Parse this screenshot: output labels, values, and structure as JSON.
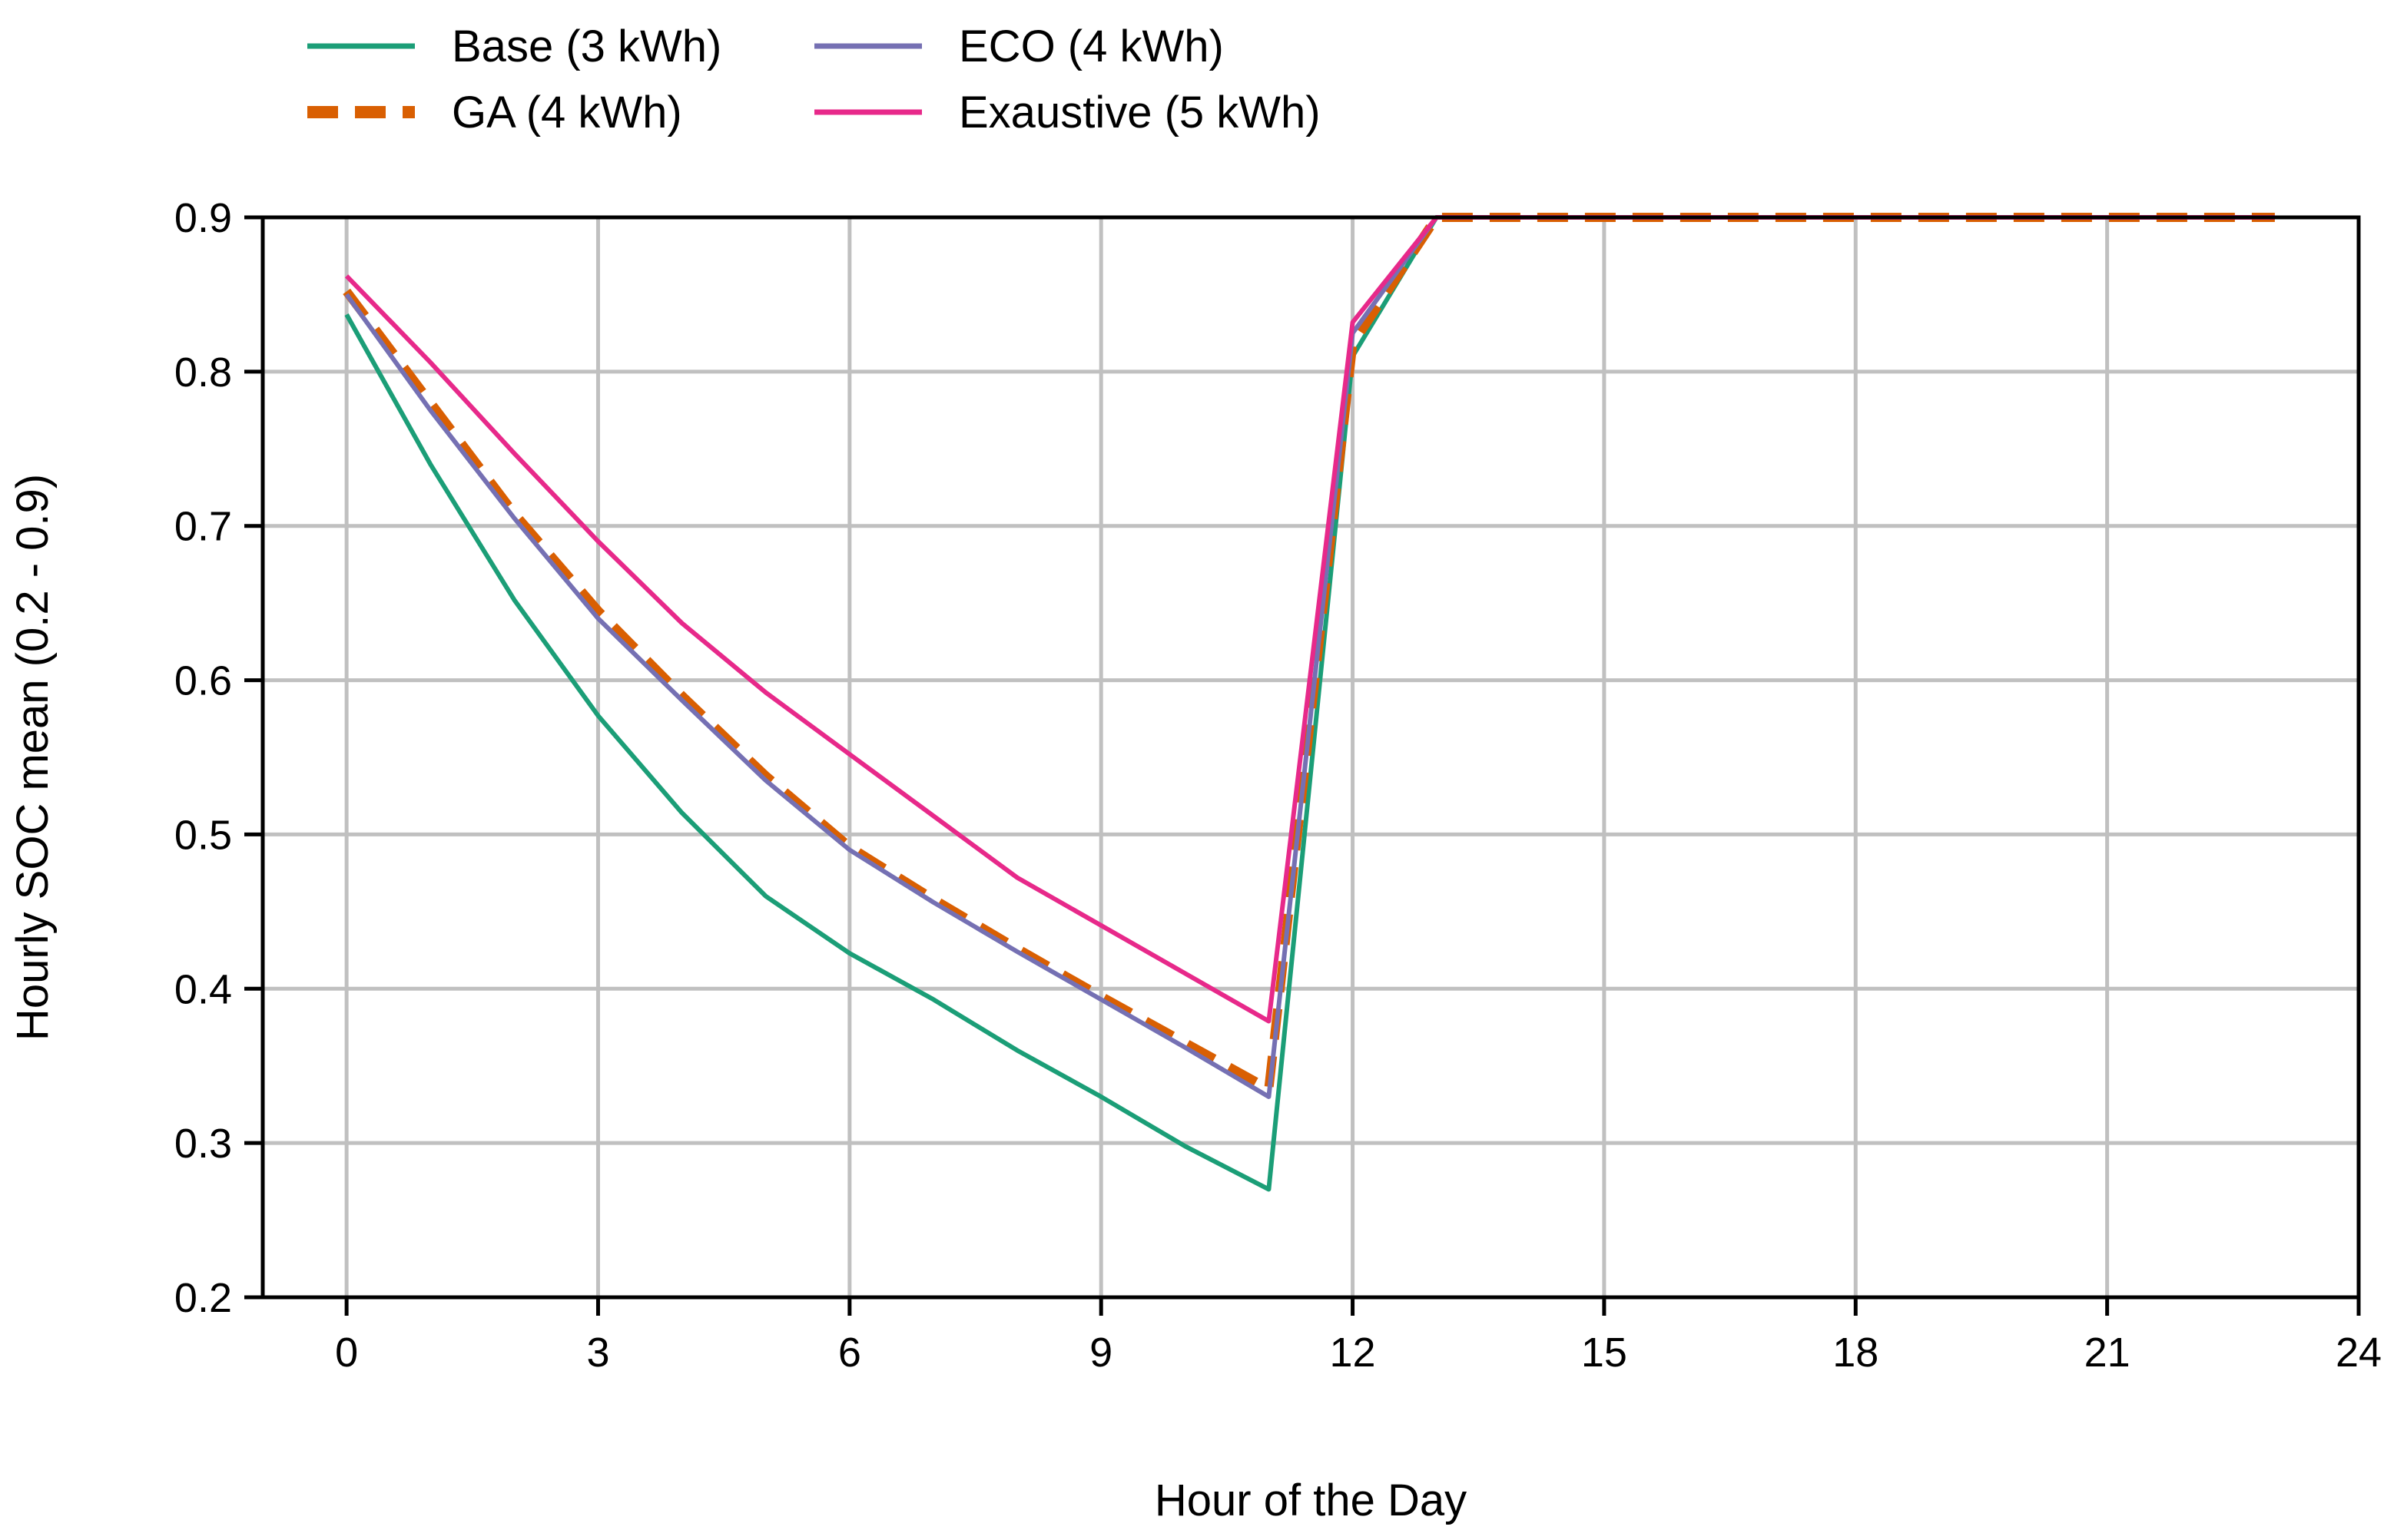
{
  "chart_data": {
    "type": "line",
    "title": "",
    "xlabel": "Hour of the Day",
    "ylabel": "Hourly SOC mean (0.2 - 0.9)",
    "xlim": [
      -1,
      24
    ],
    "ylim": [
      0.2,
      0.9
    ],
    "xticks": [
      0,
      3,
      6,
      9,
      12,
      15,
      18,
      21,
      24
    ],
    "yticks": [
      0.2,
      0.3,
      0.4,
      0.5,
      0.6,
      0.7,
      0.8,
      0.9
    ],
    "xtick_labels": [
      "0",
      "3",
      "6",
      "9",
      "12",
      "15",
      "18",
      "21",
      "24"
    ],
    "ytick_labels": [
      "0.2",
      "0.3",
      "0.4",
      "0.5",
      "0.6",
      "0.7",
      "0.8",
      "0.9"
    ],
    "grid": true,
    "legend_position": "top-left, outside plot, two columns",
    "x": [
      0,
      1,
      2,
      3,
      4,
      5,
      6,
      7,
      8,
      9,
      10,
      11,
      12,
      13,
      14,
      15,
      16,
      17,
      18,
      19,
      20,
      21,
      22,
      23
    ],
    "series": [
      {
        "name": "Base (3 kWh)",
        "color": "#1b9e77",
        "dash": "solid",
        "values": [
          0.837,
          0.74,
          0.652,
          0.577,
          0.514,
          0.46,
          0.423,
          0.393,
          0.36,
          0.33,
          0.298,
          0.27,
          0.81,
          0.9,
          0.9,
          0.9,
          0.9,
          0.9,
          0.9,
          0.9,
          0.9,
          0.9,
          0.9,
          0.9
        ]
      },
      {
        "name": "GA (4 kWh)",
        "color": "#d95f02",
        "dash": "dashed",
        "values": [
          0.852,
          0.78,
          0.708,
          0.645,
          0.59,
          0.538,
          0.492,
          0.458,
          0.426,
          0.395,
          0.365,
          0.335,
          0.818,
          0.9,
          0.9,
          0.9,
          0.9,
          0.9,
          0.9,
          0.9,
          0.9,
          0.9,
          0.9,
          0.9
        ]
      },
      {
        "name": "ECO (4 kWh)",
        "color": "#7570b3",
        "dash": "solid",
        "values": [
          0.85,
          0.775,
          0.705,
          0.64,
          0.587,
          0.535,
          0.49,
          0.456,
          0.424,
          0.393,
          0.362,
          0.33,
          0.825,
          0.9,
          0.9,
          0.9,
          0.9,
          0.9,
          0.9,
          0.9,
          0.9,
          0.9,
          0.9,
          0.9
        ]
      },
      {
        "name": "Exaustive (5 kWh)",
        "color": "#e7298a",
        "dash": "solid",
        "values": [
          0.862,
          0.806,
          0.747,
          0.69,
          0.637,
          0.592,
          0.552,
          0.512,
          0.472,
          0.441,
          0.41,
          0.379,
          0.832,
          0.9,
          0.9,
          0.9,
          0.9,
          0.9,
          0.9,
          0.9,
          0.9,
          0.9,
          0.9,
          0.9
        ]
      }
    ],
    "legend": [
      "Base (3 kWh)",
      "GA (4 kWh)",
      "ECO (4 kWh)",
      "Exaustive (5 kWh)"
    ]
  }
}
